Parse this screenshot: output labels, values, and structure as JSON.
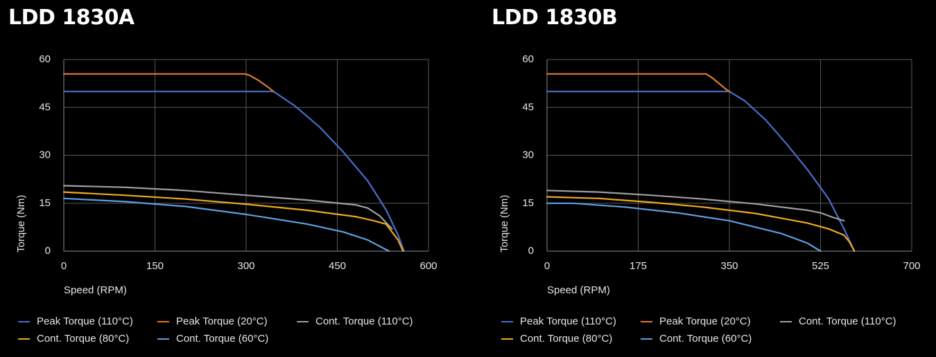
{
  "chart_data": [
    {
      "type": "line",
      "title": "LDD 1830A",
      "xlabel": "Speed (RPM)",
      "ylabel": "Torque (Nm)",
      "xlim": [
        0,
        600
      ],
      "ylim": [
        0,
        60
      ],
      "xticks": [
        "0",
        "150",
        "300",
        "450",
        "600"
      ],
      "yticks": [
        "0",
        "15",
        "30",
        "45",
        "60"
      ],
      "grid": true,
      "legend_position": "bottom",
      "series": [
        {
          "name": "Peak Torque (110°C)",
          "color": "#4a6fc9",
          "x": [
            0,
            345,
            380,
            420,
            460,
            500,
            530,
            550,
            560
          ],
          "y": [
            50,
            50,
            45.5,
            39,
            31,
            22,
            13,
            5,
            0
          ]
        },
        {
          "name": "Peak Torque (20°C)",
          "color": "#e27a2c",
          "x": [
            0,
            298,
            306,
            320,
            335,
            345
          ],
          "y": [
            55.5,
            55.5,
            55,
            53.5,
            51.5,
            50
          ]
        },
        {
          "name": "Cont. Torque (110°C)",
          "color": "#a0a0a0",
          "x": [
            0,
            100,
            200,
            300,
            400,
            480,
            500,
            520,
            540
          ],
          "y": [
            20.5,
            20,
            19,
            17.5,
            16,
            14.5,
            13.5,
            11,
            7
          ]
        },
        {
          "name": "Cont. Torque (80°C)",
          "color": "#f0aa1e",
          "x": [
            0,
            100,
            200,
            300,
            400,
            480,
            510,
            530,
            550,
            558
          ],
          "y": [
            18.5,
            17.5,
            16.3,
            14.7,
            12.8,
            10.8,
            9.5,
            8.5,
            3.5,
            0
          ]
        },
        {
          "name": "Cont. Torque (60°C)",
          "color": "#5ea0e0",
          "x": [
            0,
            100,
            200,
            300,
            400,
            460,
            500,
            520,
            535
          ],
          "y": [
            16.5,
            15.5,
            14,
            11.5,
            8.5,
            6,
            3.5,
            1.5,
            0
          ]
        }
      ]
    },
    {
      "type": "line",
      "title": "LDD 1830B",
      "xlabel": "Speed (RPM)",
      "ylabel": "Torque (Nm)",
      "xlim": [
        0,
        700
      ],
      "ylim": [
        0,
        60
      ],
      "xticks": [
        "0",
        "175",
        "350",
        "525",
        "700"
      ],
      "yticks": [
        "0",
        "15",
        "30",
        "45",
        "60"
      ],
      "grid": true,
      "legend_position": "bottom",
      "series": [
        {
          "name": "Peak Torque (110°C)",
          "color": "#4a6fc9",
          "x": [
            0,
            350,
            380,
            420,
            460,
            500,
            540,
            570,
            590
          ],
          "y": [
            50,
            50,
            47,
            41,
            33.5,
            25.5,
            16.5,
            7,
            0
          ]
        },
        {
          "name": "Peak Torque (20°C)",
          "color": "#e27a2c",
          "x": [
            0,
            305,
            315,
            330,
            345,
            350
          ],
          "y": [
            55.5,
            55.5,
            54.5,
            52.5,
            50.5,
            50
          ]
        },
        {
          "name": "Cont. Torque (110°C)",
          "color": "#a0a0a0",
          "x": [
            0,
            100,
            200,
            300,
            400,
            500,
            525,
            550,
            570
          ],
          "y": [
            19,
            18.5,
            17.5,
            16.3,
            14.8,
            12.8,
            12,
            10.5,
            9.5
          ]
        },
        {
          "name": "Cont. Torque (80°C)",
          "color": "#f0aa1e",
          "x": [
            0,
            100,
            200,
            300,
            400,
            500,
            540,
            570,
            580,
            590
          ],
          "y": [
            17,
            16.5,
            15.3,
            13.8,
            11.8,
            8.8,
            7,
            5,
            3,
            0
          ]
        },
        {
          "name": "Cont. Torque (60°C)",
          "color": "#5ea0e0",
          "x": [
            0,
            50,
            150,
            250,
            350,
            450,
            500,
            525
          ],
          "y": [
            15,
            15,
            13.8,
            12,
            9.5,
            5.5,
            2.5,
            0
          ]
        }
      ]
    }
  ]
}
